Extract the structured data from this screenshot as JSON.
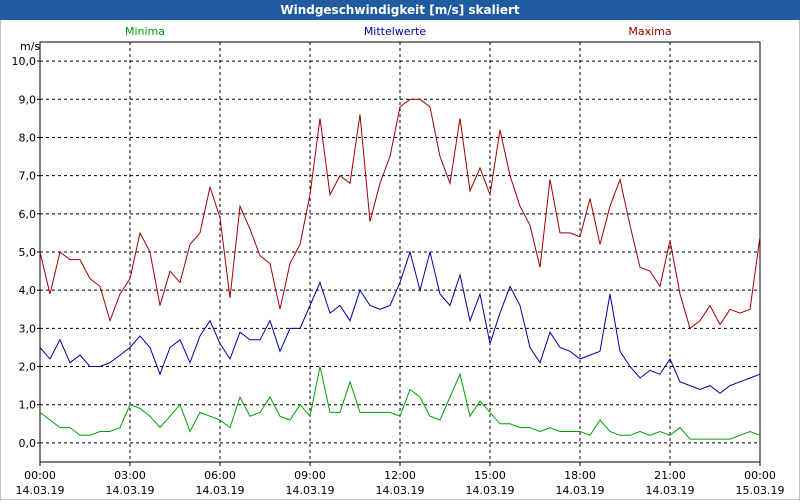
{
  "chart_data": {
    "type": "line",
    "title": "Windgeschwindigkeit [m/s] skaliert",
    "y_unit": "m/s",
    "x": [
      0,
      20,
      40,
      60,
      80,
      100,
      120,
      140,
      160,
      180,
      200,
      220,
      240,
      260,
      280,
      300,
      320,
      340,
      360,
      380,
      400,
      420,
      440,
      460,
      480,
      500,
      520,
      540,
      560,
      580,
      600,
      620,
      640,
      660,
      680,
      700,
      720,
      740,
      760,
      780,
      800,
      820,
      840,
      860,
      880,
      900,
      920,
      940,
      960,
      980,
      1000,
      1020,
      1040,
      1060,
      1080,
      1100,
      1120,
      1140,
      1160,
      1180,
      1200,
      1220,
      1240,
      1260,
      1280,
      1300,
      1320,
      1340,
      1360,
      1380,
      1400,
      1420,
      1440
    ],
    "xlim": [
      0,
      1440
    ],
    "xticks": [
      {
        "value": 0,
        "label": "00:00",
        "date": "14.03.19"
      },
      {
        "value": 180,
        "label": "03:00",
        "date": "14.03.19"
      },
      {
        "value": 360,
        "label": "06:00",
        "date": "14.03.19"
      },
      {
        "value": 540,
        "label": "09:00",
        "date": "14.03.19"
      },
      {
        "value": 720,
        "label": "12:00",
        "date": "14.03.19"
      },
      {
        "value": 900,
        "label": "15:00",
        "date": "14.03.19"
      },
      {
        "value": 1080,
        "label": "18:00",
        "date": "14.03.19"
      },
      {
        "value": 1260,
        "label": "21:00",
        "date": "14.03.19"
      },
      {
        "value": 1440,
        "label": "00:00",
        "date": "15.03.19"
      }
    ],
    "ylim": [
      -0.5,
      10.5
    ],
    "yticks": [
      {
        "value": 0,
        "label": "0,0"
      },
      {
        "value": 1,
        "label": "1,0"
      },
      {
        "value": 2,
        "label": "2,0"
      },
      {
        "value": 3,
        "label": "3,0"
      },
      {
        "value": 4,
        "label": "4,0"
      },
      {
        "value": 5,
        "label": "5,0"
      },
      {
        "value": 6,
        "label": "6,0"
      },
      {
        "value": 7,
        "label": "7,0"
      },
      {
        "value": 8,
        "label": "8,0"
      },
      {
        "value": 9,
        "label": "9,0"
      },
      {
        "value": 10,
        "label": "10,0"
      }
    ],
    "grid": true,
    "series": [
      {
        "name": "Minima",
        "color": "#00a000",
        "values": [
          0.8,
          0.6,
          0.4,
          0.4,
          0.2,
          0.2,
          0.3,
          0.3,
          0.4,
          1.0,
          0.9,
          0.7,
          0.4,
          0.7,
          1.0,
          0.3,
          0.8,
          0.7,
          0.6,
          0.4,
          1.2,
          0.7,
          0.8,
          1.2,
          0.7,
          0.6,
          1.0,
          0.7,
          2.0,
          0.8,
          0.8,
          1.6,
          0.8,
          0.8,
          0.8,
          0.8,
          0.7,
          1.4,
          1.2,
          0.7,
          0.6,
          1.2,
          1.8,
          0.7,
          1.1,
          0.8,
          0.5,
          0.5,
          0.4,
          0.4,
          0.3,
          0.4,
          0.3,
          0.3,
          0.3,
          0.2,
          0.6,
          0.3,
          0.2,
          0.2,
          0.3,
          0.2,
          0.3,
          0.2,
          0.4,
          0.1,
          0.1,
          0.1,
          0.1,
          0.1,
          0.2,
          0.3,
          0.2
        ]
      },
      {
        "name": "Mittelwerte",
        "color": "#0000a0",
        "values": [
          2.5,
          2.2,
          2.7,
          2.1,
          2.3,
          2.0,
          2.0,
          2.1,
          2.3,
          2.5,
          2.8,
          2.5,
          1.8,
          2.5,
          2.7,
          2.1,
          2.8,
          3.2,
          2.6,
          2.2,
          2.9,
          2.7,
          2.7,
          3.2,
          2.4,
          3.0,
          3.0,
          3.6,
          4.2,
          3.4,
          3.6,
          3.2,
          4.0,
          3.6,
          3.5,
          3.6,
          4.2,
          5.0,
          4.0,
          5.0,
          3.9,
          3.6,
          4.4,
          3.2,
          3.9,
          2.6,
          3.4,
          4.1,
          3.6,
          2.5,
          2.1,
          2.9,
          2.5,
          2.4,
          2.2,
          2.3,
          2.4,
          3.9,
          2.4,
          2.0,
          1.7,
          1.9,
          1.8,
          2.2,
          1.6,
          1.5,
          1.4,
          1.5,
          1.3,
          1.5,
          1.6,
          1.7,
          1.8
        ]
      },
      {
        "name": "Maxima",
        "color": "#a00000",
        "values": [
          5.0,
          3.9,
          5.0,
          4.8,
          4.8,
          4.3,
          4.1,
          3.2,
          3.9,
          4.3,
          5.5,
          5.0,
          3.6,
          4.5,
          4.2,
          5.2,
          5.5,
          6.7,
          5.9,
          3.8,
          6.2,
          5.6,
          4.9,
          4.7,
          3.5,
          4.7,
          5.2,
          6.5,
          8.5,
          6.5,
          7.0,
          6.8,
          8.6,
          5.8,
          6.8,
          7.5,
          8.8,
          9.0,
          9.0,
          8.8,
          7.5,
          6.8,
          8.5,
          6.6,
          7.2,
          6.5,
          8.2,
          7.0,
          6.2,
          5.7,
          4.6,
          6.9,
          5.5,
          5.5,
          5.4,
          6.4,
          5.2,
          6.2,
          6.9,
          5.7,
          4.6,
          4.5,
          4.1,
          5.3,
          3.9,
          3.0,
          3.2,
          3.6,
          3.1,
          3.5,
          3.4,
          3.5,
          5.4
        ]
      }
    ]
  }
}
